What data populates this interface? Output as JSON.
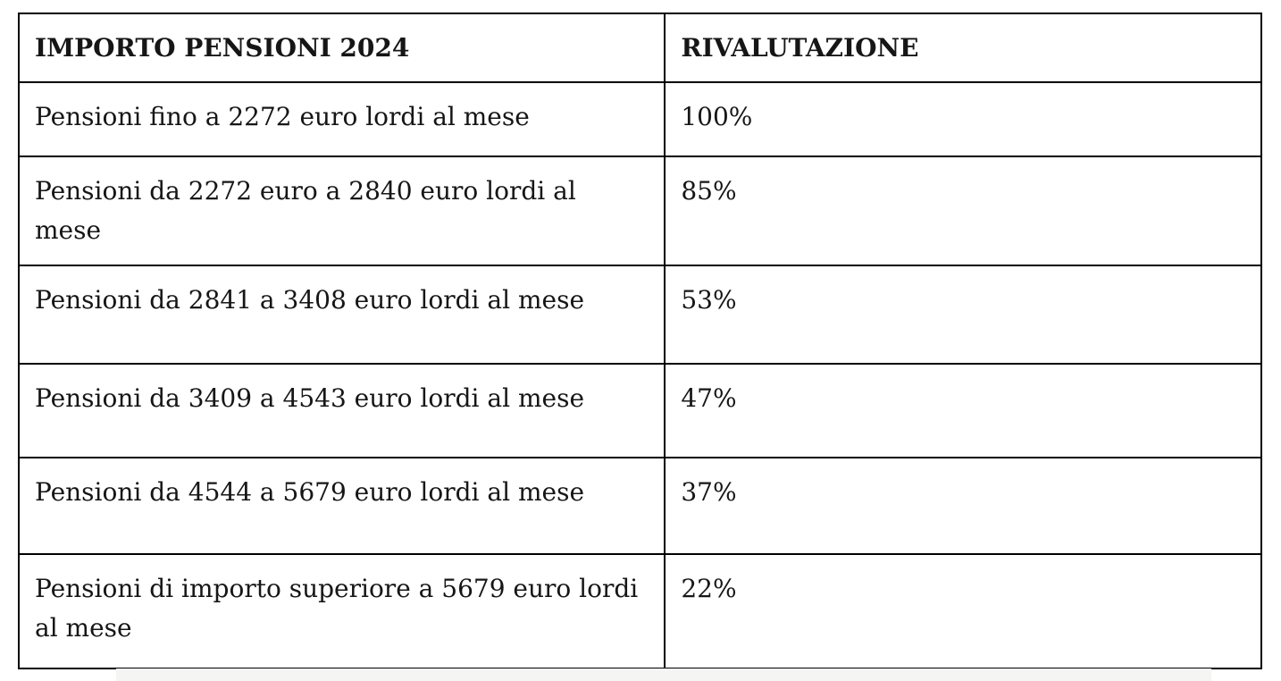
{
  "chart_data": {
    "type": "table",
    "title": "IMPORTO PENSIONI 2024 / RIVALUTAZIONE",
    "columns": [
      "IMPORTO PENSIONI 2024",
      "RIVALUTAZIONE"
    ],
    "rows": [
      [
        "Pensioni fino a 2272 euro lordi al mese",
        "100%"
      ],
      [
        "Pensioni da 2272 euro a 2840 euro lordi al mese",
        "85%"
      ],
      [
        "Pensioni da 2841 a 3408 euro lordi al mese",
        "53%"
      ],
      [
        "Pensioni da 3409 a 4543 euro lordi al mese",
        "47%"
      ],
      [
        "Pensioni da 4544 a 5679 euro lordi al mese",
        "37%"
      ],
      [
        "Pensioni di importo superiore a 5679 euro lordi al mese",
        "22%"
      ]
    ],
    "revaluation_percent_values": [
      100,
      85,
      53,
      47,
      37,
      22
    ]
  },
  "table": {
    "headers": {
      "importo": "IMPORTO PENSIONI 2024",
      "rivalutazione": "RIVALUTAZIONE"
    },
    "rows": [
      {
        "label": "Pensioni fino a 2272 euro lordi al mese",
        "value": "100%"
      },
      {
        "label": "Pensioni da 2272 euro a 2840 euro lordi al mese",
        "value": "85%"
      },
      {
        "label": "Pensioni da 2841 a 3408 euro lordi al mese",
        "value": "53%"
      },
      {
        "label": "Pensioni da 3409 a 4543 euro lordi al mese",
        "value": "47%"
      },
      {
        "label": "Pensioni da 4544 a 5679 euro lordi al mese",
        "value": "37%"
      },
      {
        "label": "Pensioni di importo superiore a 5679 euro lordi al mese",
        "value": "22%"
      }
    ]
  },
  "colors": {
    "border": "#000000",
    "text": "#161616",
    "background": "#ffffff",
    "footer_strip": "#f5f5f4"
  }
}
